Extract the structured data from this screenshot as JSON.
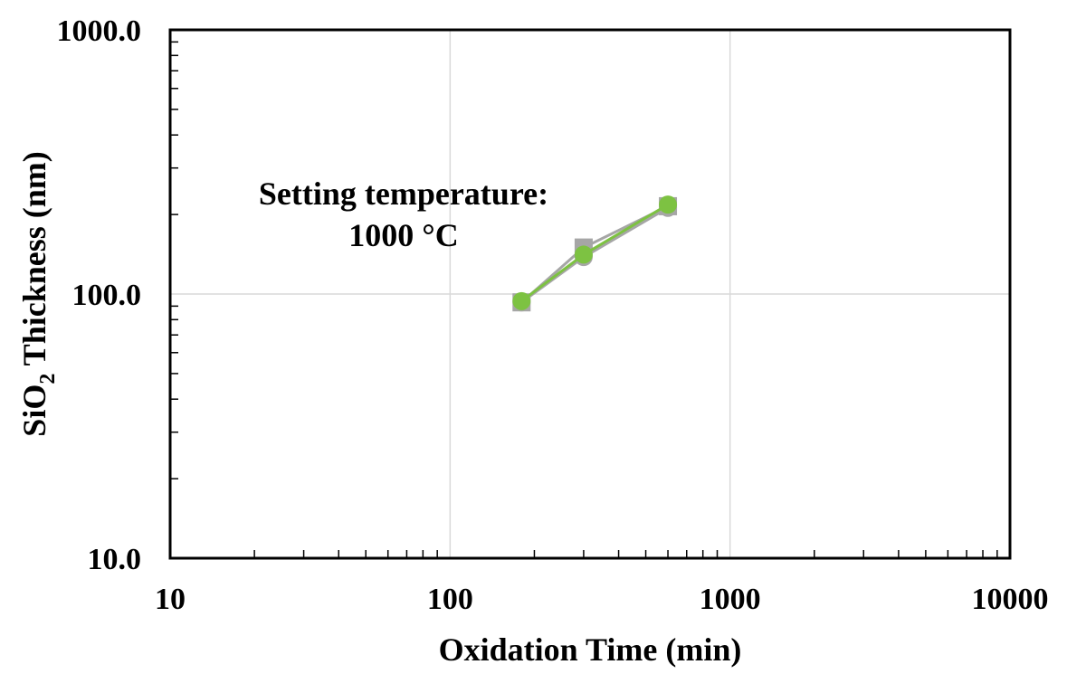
{
  "chart_data": {
    "type": "line",
    "x_scale": "log",
    "y_scale": "log",
    "xlim": [
      10,
      10000
    ],
    "ylim": [
      10,
      1000
    ],
    "x_ticks": [
      "10",
      "100",
      "1000",
      "10000"
    ],
    "y_ticks": [
      "10.0",
      "100.0",
      "1000.0"
    ],
    "xlabel": "Oxidation Time (min)",
    "ylabel_main": "SiO",
    "ylabel_sub": "2",
    "ylabel_rest": " Thickness (nm)",
    "grid": true,
    "legend": "none",
    "annotation": {
      "line1": "Setting temperature:",
      "line2": "1000 °C"
    },
    "series": [
      {
        "color": "#a6a6a6",
        "marker": "circle",
        "x": [
          180,
          300,
          600
        ],
        "y": [
          93,
          138,
          212
        ]
      },
      {
        "color": "#a6a6a6",
        "marker": "square",
        "x": [
          180,
          300,
          600
        ],
        "y": [
          93,
          150,
          215
        ]
      },
      {
        "color": "#7dc242",
        "marker": "circle",
        "x": [
          180,
          300,
          600
        ],
        "y": [
          94,
          141,
          218
        ]
      }
    ]
  }
}
